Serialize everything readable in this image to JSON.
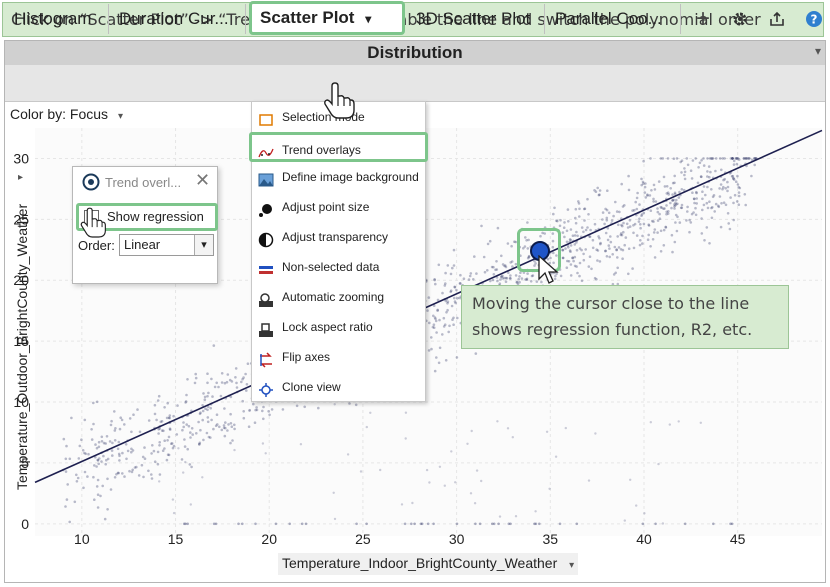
{
  "banner": {
    "text": "Click on “Scatter Plot” -> “Trend overlays” to enable the line and switch the polynomial order"
  },
  "window": {
    "title": "Distribution"
  },
  "tabs": [
    {
      "label": "Histogram"
    },
    {
      "label": "Duration Cur..."
    },
    {
      "label": "Scatter Plot",
      "active": true
    },
    {
      "label": "3D Scatter Plot"
    },
    {
      "label": "Parallel Coo..."
    }
  ],
  "toolbar_icons": [
    "plus-icon",
    "gear-icon",
    "export-icon",
    "help-icon"
  ],
  "color_by": {
    "label": "Color by: Focus"
  },
  "menu": {
    "items": [
      {
        "label": "Selection mode",
        "icon": "selection-mode-icon"
      },
      {
        "label": "Trend overlays",
        "icon": "trend-icon",
        "highlighted": true
      },
      {
        "label": "Define image background",
        "icon": "image-icon"
      },
      {
        "label": "Adjust point size",
        "icon": "point-size-icon"
      },
      {
        "label": "Adjust transparency",
        "icon": "transparency-icon"
      },
      {
        "label": "Non-selected data",
        "icon": "non-selected-icon"
      },
      {
        "label": "Automatic zooming",
        "icon": "auto-zoom-icon"
      },
      {
        "label": "Lock aspect ratio",
        "icon": "lock-aspect-icon"
      },
      {
        "label": "Flip axes",
        "icon": "flip-axes-icon"
      },
      {
        "label": "Clone view",
        "icon": "clone-view-icon"
      }
    ]
  },
  "trend_panel": {
    "title": "Trend overl...",
    "checkbox_label": "Show regression",
    "order_label": "Order:",
    "order_value": "Linear"
  },
  "callout": {
    "line1": "Moving the cursor close to the line",
    "line2": "shows regression function, R2, etc."
  },
  "chart_data": {
    "type": "scatter",
    "xlabel": "Temperature_Indoor_BrightCounty_Weather",
    "ylabel": "Temperature_Outdoor_BrightCounty_Weather",
    "x_ticks": [
      10,
      15,
      20,
      25,
      30,
      35,
      40,
      45
    ],
    "y_ticks": [
      0,
      5,
      10,
      15,
      20,
      25,
      30
    ],
    "xlim": [
      7.5,
      49.5
    ],
    "ylim": [
      -1,
      32.5
    ],
    "trend_line": {
      "x": [
        7.5,
        49.5
      ],
      "y": [
        3.4,
        32.3
      ]
    },
    "point_color": "#3a3f6e",
    "line_color": "#1e2050"
  },
  "accent": "#7dc58b"
}
